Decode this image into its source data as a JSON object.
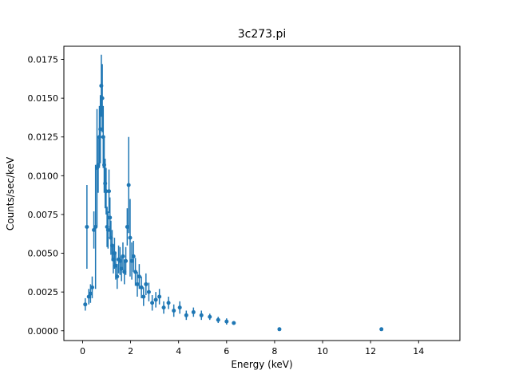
{
  "chart_data": {
    "type": "scatter",
    "subtype": "errorbar",
    "title": "3c273.pi",
    "xlabel": "Energy (keV)",
    "ylabel": "Counts/sec/keV",
    "xlim": [
      -0.78,
      15.72
    ],
    "ylim": [
      -0.00063,
      0.01835
    ],
    "xticks": [
      0,
      2,
      4,
      6,
      8,
      10,
      12,
      14
    ],
    "xtick_labels": [
      "0",
      "2",
      "4",
      "6",
      "8",
      "10",
      "12",
      "14"
    ],
    "yticks": [
      0.0,
      0.0025,
      0.005,
      0.0075,
      0.01,
      0.0125,
      0.015,
      0.0175
    ],
    "ytick_labels": [
      "0.0000",
      "0.0025",
      "0.0050",
      "0.0075",
      "0.0100",
      "0.0125",
      "0.0150",
      "0.0175"
    ],
    "legend": null,
    "grid": false,
    "marker_color": "#1f77b4",
    "background": "#ffffff",
    "x": [
      0.11,
      0.18,
      0.26,
      0.33,
      0.4,
      0.47,
      0.54,
      0.6,
      0.65,
      0.7,
      0.74,
      0.78,
      0.82,
      0.86,
      0.9,
      0.94,
      0.98,
      1.02,
      1.06,
      1.1,
      1.14,
      1.18,
      1.23,
      1.28,
      1.33,
      1.38,
      1.44,
      1.5,
      1.56,
      1.62,
      1.68,
      1.74,
      1.8,
      1.86,
      1.92,
      1.98,
      2.05,
      2.12,
      2.2,
      2.28,
      2.36,
      2.45,
      2.54,
      2.64,
      2.76,
      2.9,
      3.05,
      3.2,
      3.38,
      3.58,
      3.8,
      4.05,
      4.32,
      4.62,
      4.95,
      5.3,
      5.65,
      6.0,
      6.3,
      8.2,
      12.45
    ],
    "y": [
      0.0017,
      0.0067,
      0.0022,
      0.0024,
      0.0028,
      0.0065,
      0.0067,
      0.0105,
      0.0107,
      0.0125,
      0.013,
      0.0158,
      0.015,
      0.0125,
      0.0107,
      0.0095,
      0.009,
      0.0067,
      0.0065,
      0.009,
      0.0073,
      0.006,
      0.0055,
      0.0046,
      0.005,
      0.0042,
      0.0035,
      0.0046,
      0.0045,
      0.004,
      0.0048,
      0.0038,
      0.0045,
      0.0067,
      0.0094,
      0.006,
      0.0045,
      0.0048,
      0.0038,
      0.003,
      0.0035,
      0.0028,
      0.0022,
      0.003,
      0.0025,
      0.0018,
      0.002,
      0.0022,
      0.0015,
      0.0018,
      0.0013,
      0.0015,
      0.001,
      0.0012,
      0.001,
      0.0009,
      0.0007,
      0.0006,
      0.0005,
      0.0001,
      0.0001
    ],
    "yerr": [
      0.0004,
      0.0027,
      0.0005,
      0.0006,
      0.0007,
      0.0012,
      0.004,
      0.0038,
      0.0018,
      0.002,
      0.0022,
      0.002,
      0.0022,
      0.002,
      0.0018,
      0.0016,
      0.0015,
      0.0013,
      0.0012,
      0.0014,
      0.0013,
      0.0011,
      0.001,
      0.0009,
      0.001,
      0.0009,
      0.0008,
      0.0009,
      0.0009,
      0.0008,
      0.0009,
      0.0008,
      0.0009,
      0.0012,
      0.0031,
      0.0025,
      0.0012,
      0.001,
      0.0009,
      0.0008,
      0.0008,
      0.0007,
      0.0006,
      0.0007,
      0.0006,
      0.0005,
      0.0005,
      0.0005,
      0.0004,
      0.0004,
      0.0004,
      0.0004,
      0.0003,
      0.0003,
      0.0003,
      0.0002,
      0.0002,
      0.0002,
      0.0001,
      0.0001,
      0.0001
    ]
  }
}
